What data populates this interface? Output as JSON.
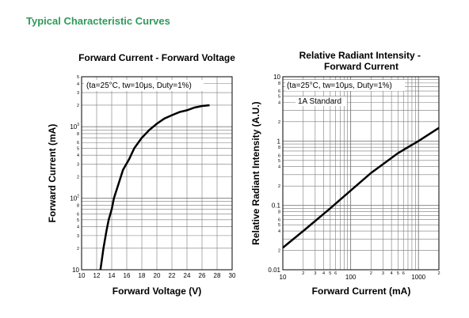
{
  "heading": "Typical Characteristic Curves",
  "colors": {
    "heading": "#2e9a5c",
    "curve": "#000000",
    "grid": "#7a7a7a"
  },
  "chart_data": [
    {
      "type": "line",
      "title": "Forward Current - Forward Voltage",
      "xlabel": "Forward Voltage (V)",
      "ylabel": "Forward Current (mA)",
      "note": "(ta=25°C, tw=10μs, Duty=1%)",
      "xscale": "linear",
      "yscale": "log",
      "xlim": [
        10,
        30
      ],
      "ylim": [
        10,
        5000
      ],
      "grid": true,
      "x_ticks": [
        "10",
        "12",
        "14",
        "16",
        "18",
        "20",
        "22",
        "24",
        "26",
        "28",
        "30"
      ],
      "y_tick_exponents": [
        "1",
        "2",
        "3"
      ],
      "y_minor_ticks": [
        "2",
        "3",
        "4",
        "5",
        "6",
        "8",
        "2",
        "3",
        "4",
        "5",
        "6",
        "8",
        "2",
        "3",
        "4",
        "5"
      ],
      "series": [
        {
          "x": [
            12.5,
            12.9,
            13.3,
            13.6,
            14.0,
            14.3,
            15.0,
            15.5,
            16.3,
            17.0,
            18.0,
            19.0,
            20.0,
            21.0,
            22.0,
            23.0,
            24.0,
            25.0,
            26.0,
            27.0
          ],
          "y": [
            10,
            20,
            35,
            50,
            70,
            100,
            170,
            250,
            350,
            500,
            700,
            900,
            1100,
            1300,
            1450,
            1600,
            1700,
            1850,
            1950,
            2000
          ]
        }
      ]
    },
    {
      "type": "line",
      "title": "Relative Radiant Intensity - Forward Current",
      "xlabel": "Forward Current (mA)",
      "ylabel": "Relative Radiant Intensity (A.U.)",
      "note": "(ta=25°C, tw=10μs, Duty=1%)",
      "note2": "1A Standard",
      "xscale": "log",
      "yscale": "log",
      "xlim": [
        10,
        2000
      ],
      "ylim": [
        0.01,
        10
      ],
      "grid": true,
      "x_ticks": [
        "10",
        "100",
        "1000"
      ],
      "y_ticks": [
        "0.01",
        "0.1",
        "1",
        "10"
      ],
      "x_minor_ticks": [
        "2",
        "3",
        "4",
        "5",
        "6",
        "2",
        "3",
        "4",
        "5",
        "6",
        "2"
      ],
      "y_minor_ticks": [
        "2",
        "4",
        "5",
        "6",
        "8",
        "2",
        "4",
        "5",
        "6",
        "8",
        "2",
        "4",
        "5",
        "6",
        "8"
      ],
      "series": [
        {
          "x": [
            10,
            20,
            50,
            100,
            200,
            500,
            1000,
            2000
          ],
          "y": [
            0.022,
            0.04,
            0.09,
            0.17,
            0.32,
            0.65,
            1.0,
            1.6
          ]
        }
      ]
    }
  ]
}
